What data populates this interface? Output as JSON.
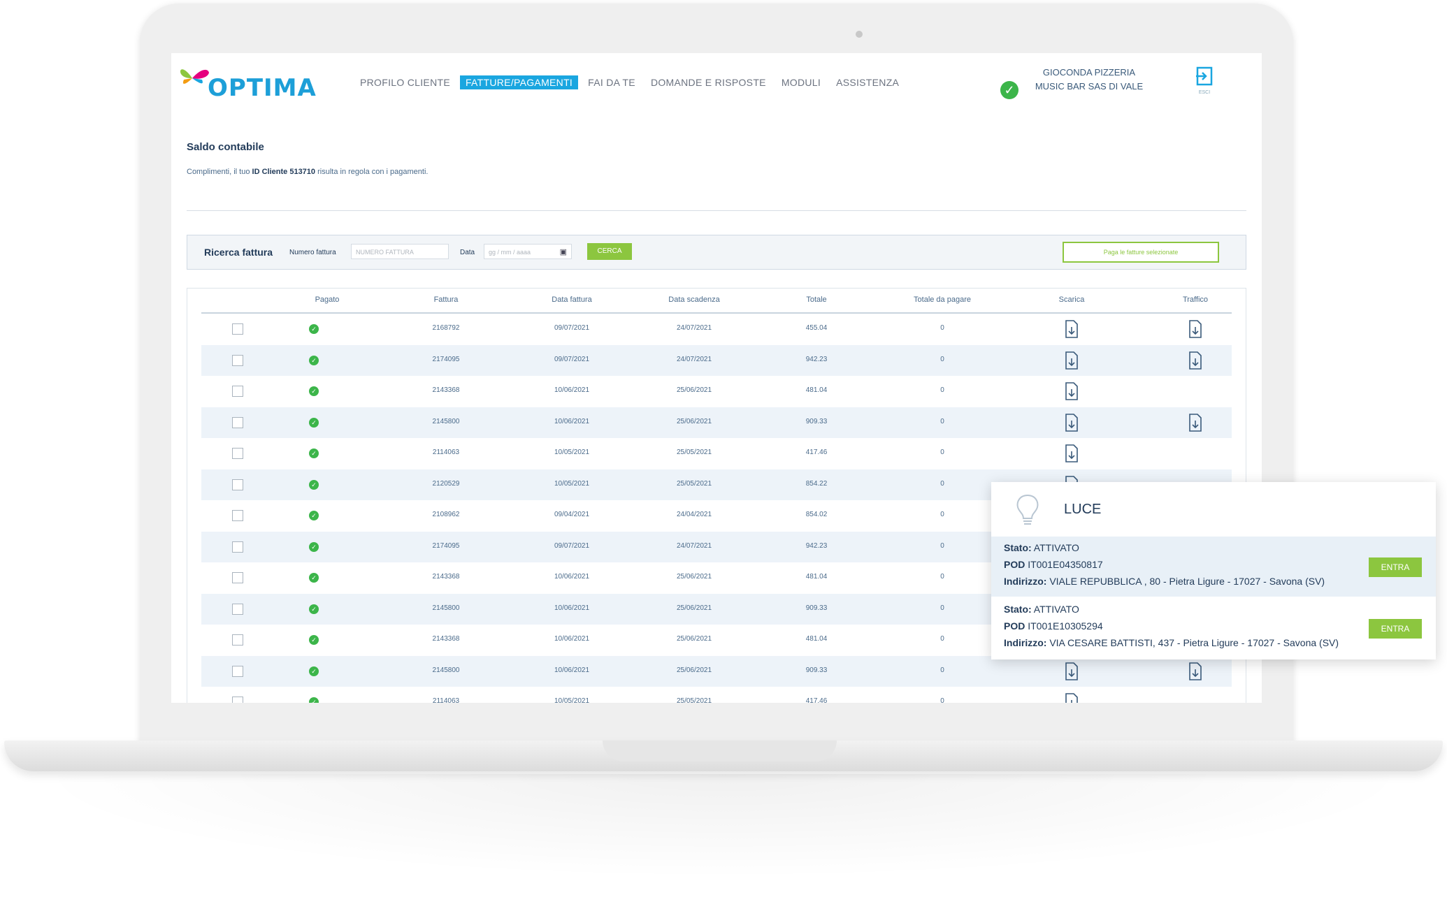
{
  "brand": {
    "logo_text": "OPTIMA",
    "accent": "#1aa6e0",
    "green": "#8cc63f"
  },
  "nav": {
    "items": [
      {
        "label": "PROFILO CLIENTE",
        "active": false
      },
      {
        "label": "FATTURE/PAGAMENTI",
        "active": true
      },
      {
        "label": "FAI DA TE",
        "active": false
      },
      {
        "label": "DOMANDE E RISPOSTE",
        "active": false
      },
      {
        "label": "MODULI",
        "active": false
      },
      {
        "label": "ASSISTENZA",
        "active": false
      }
    ]
  },
  "account": {
    "name_line1": "GIOCONDA PIZZERIA",
    "name_line2": "MUSIC BAR SAS DI VALE",
    "logout_label": "ESCI"
  },
  "saldo": {
    "title": "Saldo contabile",
    "text_before": "Complimenti, il tuo ",
    "client_id": "ID Cliente 513710",
    "text_after": " risulta in regola con i pagamenti."
  },
  "search": {
    "title": "Ricerca fattura",
    "numero_label": "Numero fattura",
    "numero_placeholder": "NUMERO FATTURA",
    "data_label": "Data",
    "data_placeholder": "gg / mm / aaaa",
    "search_button": "CERCA",
    "pay_button": "Paga le fatture selezionate"
  },
  "table": {
    "headers": [
      "Pagato",
      "Fattura",
      "Data fattura",
      "Data scadenza",
      "Totale",
      "Totale da pagare",
      "Scarica",
      "Traffico"
    ],
    "rows": [
      {
        "fattura": "2168792",
        "data": "09/07/2021",
        "scadenza": "24/07/2021",
        "totale": "455.04",
        "da_pagare": "0",
        "traffico": true
      },
      {
        "fattura": "2174095",
        "data": "09/07/2021",
        "scadenza": "24/07/2021",
        "totale": "942.23",
        "da_pagare": "0",
        "traffico": true
      },
      {
        "fattura": "2143368",
        "data": "10/06/2021",
        "scadenza": "25/06/2021",
        "totale": "481.04",
        "da_pagare": "0",
        "traffico": false
      },
      {
        "fattura": "2145800",
        "data": "10/06/2021",
        "scadenza": "25/06/2021",
        "totale": "909.33",
        "da_pagare": "0",
        "traffico": true
      },
      {
        "fattura": "2114063",
        "data": "10/05/2021",
        "scadenza": "25/05/2021",
        "totale": "417.46",
        "da_pagare": "0",
        "traffico": false
      },
      {
        "fattura": "2120529",
        "data": "10/05/2021",
        "scadenza": "25/05/2021",
        "totale": "854.22",
        "da_pagare": "0",
        "traffico": false
      },
      {
        "fattura": "2108962",
        "data": "09/04/2021",
        "scadenza": "24/04/2021",
        "totale": "854.02",
        "da_pagare": "0",
        "traffico": false
      },
      {
        "fattura": "2174095",
        "data": "09/07/2021",
        "scadenza": "24/07/2021",
        "totale": "942.23",
        "da_pagare": "0",
        "traffico": false
      },
      {
        "fattura": "2143368",
        "data": "10/06/2021",
        "scadenza": "25/06/2021",
        "totale": "481.04",
        "da_pagare": "0",
        "traffico": false
      },
      {
        "fattura": "2145800",
        "data": "10/06/2021",
        "scadenza": "25/06/2021",
        "totale": "909.33",
        "da_pagare": "0",
        "traffico": false
      },
      {
        "fattura": "2143368",
        "data": "10/06/2021",
        "scadenza": "25/06/2021",
        "totale": "481.04",
        "da_pagare": "0",
        "traffico": false
      },
      {
        "fattura": "2145800",
        "data": "10/06/2021",
        "scadenza": "25/06/2021",
        "totale": "909.33",
        "da_pagare": "0",
        "traffico": true
      },
      {
        "fattura": "2114063",
        "data": "10/05/2021",
        "scadenza": "25/05/2021",
        "totale": "417.46",
        "da_pagare": "0",
        "traffico": false
      }
    ]
  },
  "luce": {
    "title": "LUCE",
    "stato_label": "Stato:",
    "pod_label": "POD",
    "indirizzo_label": "Indirizzo:",
    "entra_label": "ENTRA",
    "supplies": [
      {
        "stato": "ATTIVATO",
        "pod": "IT001E04350817",
        "indirizzo": "VIALE REPUBBLICA , 80 - Pietra Ligure - 17027 - Savona (SV)"
      },
      {
        "stato": "ATTIVATO",
        "pod": "IT001E10305294",
        "indirizzo": "VIA CESARE BATTISTI, 437 - Pietra Ligure - 17027 - Savona (SV)"
      }
    ]
  }
}
